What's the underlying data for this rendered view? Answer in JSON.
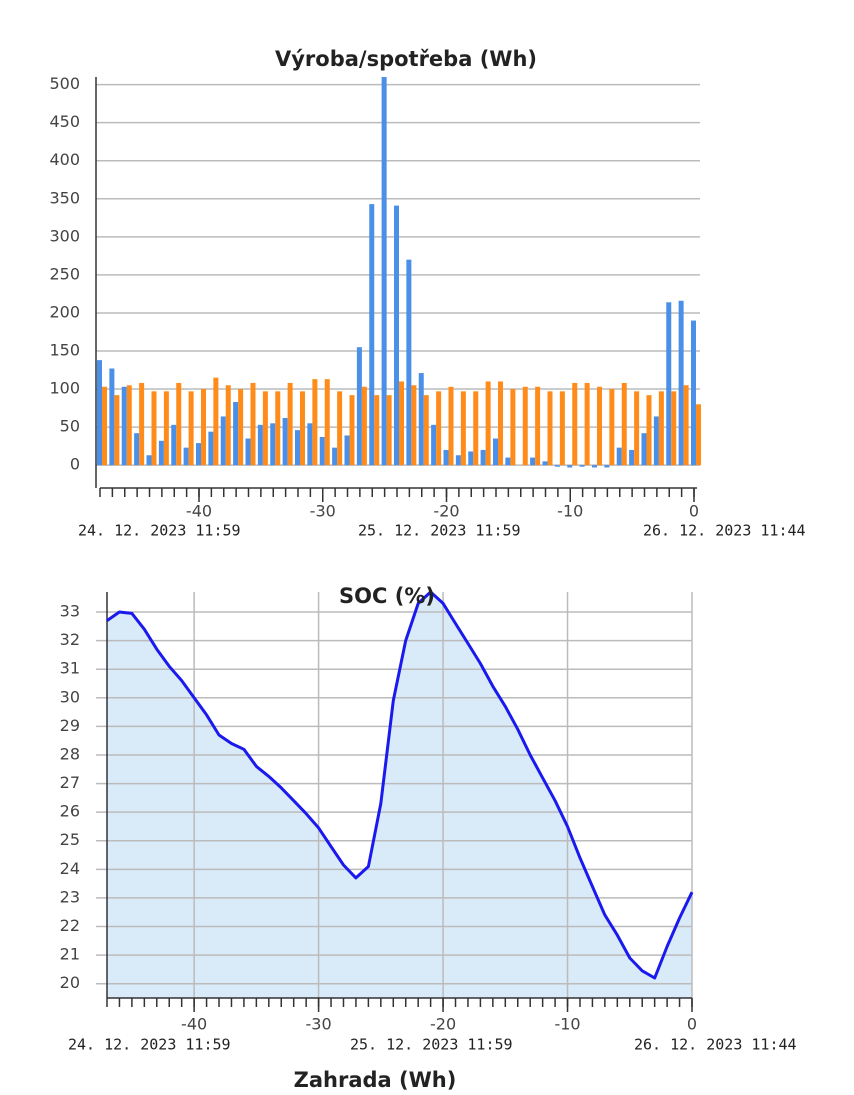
{
  "chart_data": [
    {
      "type": "bar",
      "title": "Výroba/spotřeba (Wh)",
      "x": [
        -48,
        -47,
        -46,
        -45,
        -44,
        -43,
        -42,
        -41,
        -40,
        -39,
        -38,
        -37,
        -36,
        -35,
        -34,
        -33,
        -32,
        -31,
        -30,
        -29,
        -28,
        -27,
        -26,
        -25,
        -24,
        -23,
        -22,
        -21,
        -20,
        -19,
        -18,
        -17,
        -16,
        -15,
        -14,
        -13,
        -12,
        -11,
        -10,
        -9,
        -8,
        -7,
        -6,
        -5,
        -4,
        -3,
        -2,
        -1,
        0
      ],
      "series": [
        {
          "color": "#4a8fe8",
          "values": [
            138,
            127,
            103,
            42,
            13,
            32,
            53,
            23,
            29,
            44,
            64,
            83,
            35,
            53,
            55,
            62,
            46,
            55,
            37,
            23,
            39,
            155,
            343,
            510,
            341,
            270,
            121,
            53,
            20,
            13,
            18,
            20,
            35,
            10,
            0,
            10,
            5,
            -2,
            -3,
            -2,
            -3,
            -3,
            23,
            20,
            42,
            64,
            214,
            216,
            190
          ]
        },
        {
          "color": "#ff8c1a",
          "values": [
            103,
            92,
            105,
            108,
            97,
            97,
            108,
            97,
            100,
            115,
            105,
            100,
            108,
            97,
            97,
            108,
            97,
            113,
            113,
            97,
            92,
            103,
            92,
            92,
            110,
            105,
            92,
            97,
            103,
            97,
            97,
            110,
            110,
            100,
            103,
            103,
            97,
            97,
            108,
            108,
            103,
            100,
            108,
            97,
            92,
            97,
            97,
            105,
            80
          ]
        }
      ],
      "xlim": [
        -48,
        0
      ],
      "xticks": [
        -40,
        -30,
        -20,
        -10,
        0
      ],
      "ylim": [
        -30,
        510
      ],
      "yticks": [
        0,
        50,
        100,
        150,
        200,
        250,
        300,
        350,
        400,
        450,
        500
      ],
      "date_labels": [
        "24. 12. 2023 11:59",
        "25. 12. 2023 11:59",
        "26. 12. 2023 11:44"
      ],
      "grid": true
    },
    {
      "type": "area",
      "title": "SOC (%)",
      "x": [
        -47,
        -46,
        -45,
        -44,
        -43,
        -42,
        -41,
        -40,
        -39,
        -38,
        -37,
        -36,
        -35,
        -34,
        -33,
        -32,
        -31,
        -30,
        -29,
        -28,
        -27,
        -26,
        -25,
        -24,
        -23,
        -22,
        -21,
        -20,
        -19,
        -18,
        -17,
        -16,
        -15,
        -14,
        -13,
        -12,
        -11,
        -10,
        -9,
        -8,
        -7,
        -6,
        -5,
        -4,
        -3,
        -2,
        -1,
        0
      ],
      "values": [
        32.7,
        33.0,
        32.95,
        32.4,
        31.7,
        31.1,
        30.6,
        30.0,
        29.4,
        28.7,
        28.4,
        28.2,
        27.6,
        27.25,
        26.85,
        26.4,
        25.95,
        25.45,
        24.8,
        24.15,
        23.7,
        24.1,
        26.3,
        29.9,
        32.0,
        33.3,
        33.7,
        33.3,
        32.6,
        31.9,
        31.2,
        30.4,
        29.7,
        28.9,
        28.0,
        27.2,
        26.4,
        25.5,
        24.4,
        23.4,
        22.4,
        21.7,
        20.9,
        20.45,
        20.2,
        21.3,
        22.3,
        23.2
      ],
      "color": "#1a1aee",
      "fill_color": "#d9eaf9",
      "xlim": [
        -47,
        0
      ],
      "xticks": [
        -40,
        -30,
        -20,
        -10,
        0
      ],
      "ylim": [
        19.5,
        33.7
      ],
      "yticks": [
        20,
        21,
        22,
        23,
        24,
        25,
        26,
        27,
        28,
        29,
        30,
        31,
        32,
        33
      ],
      "date_labels": [
        "24. 12. 2023 11:59",
        "25. 12. 2023 11:59",
        "26. 12. 2023 11:44"
      ],
      "grid": true
    }
  ],
  "footer": {
    "title": "Zahrada (Wh)"
  }
}
